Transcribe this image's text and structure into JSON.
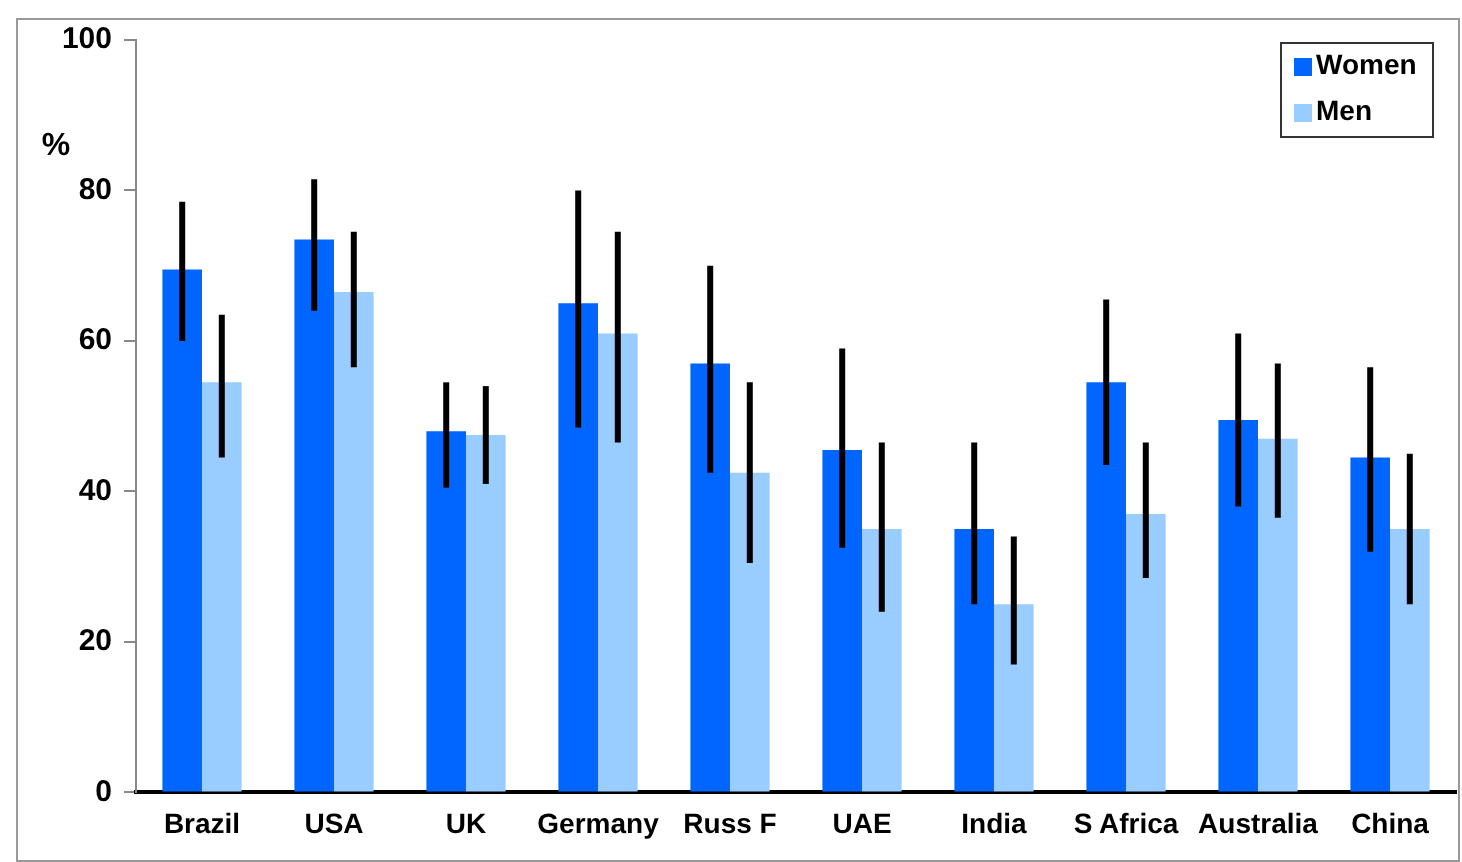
{
  "chart_data": {
    "type": "bar",
    "ylabel": "%",
    "categories": [
      "Brazil",
      "USA",
      "UK",
      "Germany",
      "Russ F",
      "UAE",
      "India",
      "S Africa",
      "Australia",
      "China"
    ],
    "series": [
      {
        "name": "Women",
        "color": "#0066ff",
        "values": [
          69.5,
          73.5,
          48,
          65,
          57,
          45.5,
          35,
          54.5,
          49.5,
          44.5
        ],
        "errors": [
          [
            60,
            78.5
          ],
          [
            64,
            81.5
          ],
          [
            40.5,
            54.5
          ],
          [
            48.5,
            80
          ],
          [
            42.5,
            70
          ],
          [
            32.5,
            59
          ],
          [
            25,
            46.5
          ],
          [
            43.5,
            65.5
          ],
          [
            38,
            61
          ],
          [
            32,
            56.5
          ]
        ]
      },
      {
        "name": "Men",
        "color": "#99ccff",
        "values": [
          54.5,
          66.5,
          47.5,
          61,
          42.5,
          35,
          25,
          37,
          47,
          35
        ],
        "errors": [
          [
            44.5,
            63.5
          ],
          [
            56.5,
            74.5
          ],
          [
            41,
            54
          ],
          [
            46.5,
            74.5
          ],
          [
            30.5,
            54.5
          ],
          [
            24,
            46.5
          ],
          [
            17,
            34
          ],
          [
            28.5,
            46.5
          ],
          [
            36.5,
            57
          ],
          [
            25,
            45
          ]
        ]
      }
    ],
    "ylim": [
      0,
      100
    ],
    "yticks": [
      0,
      20,
      40,
      60,
      80,
      100
    ],
    "grid": false,
    "legend": "top right"
  }
}
